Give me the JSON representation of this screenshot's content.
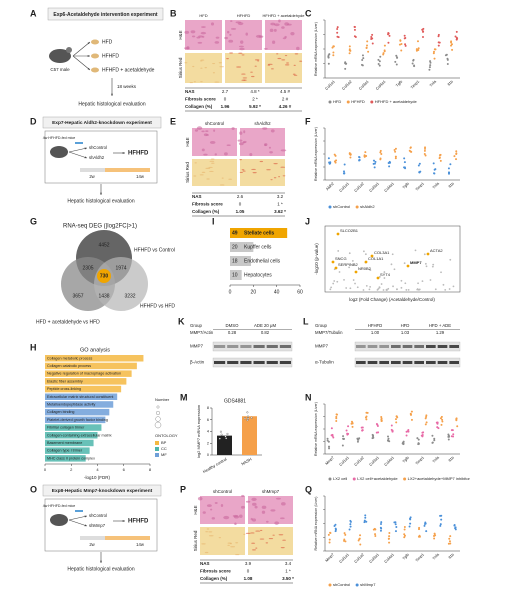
{
  "A": {
    "label": "A",
    "title": "Exp6-Acetaldehyde intervention experiment",
    "mouse": "C57 male",
    "groups": [
      "HFD",
      "HFHFD",
      "HFHFD + acetaldehyde"
    ],
    "duration": "18 weeks",
    "outcome": "Hepatic histological evaluation"
  },
  "B": {
    "label": "B",
    "columns": [
      "HFD",
      "HFHFD",
      "HFHFD + acetaldehyde"
    ],
    "rows": [
      "H&E",
      "Sirius Red"
    ],
    "table": [
      [
        "NAS",
        "2.7",
        "4.8 *",
        "4.5 #"
      ],
      [
        "Fibrosis score",
        "0",
        "2 *",
        "2 #"
      ],
      [
        "Collagen (%)",
        "1.96",
        "5.92 *",
        "4.26 #"
      ]
    ]
  },
  "C": {
    "label": "C",
    "ylabel": "Relative mRNA expression (Liver)",
    "categories": [
      "Col1a1",
      "Col1a2",
      "Col3a1",
      "Col4a1",
      "Tgfb",
      "Timp1",
      "Tnfa",
      "Il1b"
    ],
    "legend": [
      "HFD",
      "HFHFD",
      "HFHFD + acetaldehyde"
    ],
    "colors": [
      "#8c8c8c",
      "#f5a04a",
      "#e05a5a"
    ]
  },
  "D": {
    "label": "D",
    "title": "Exp7-Hepatic Aldh2-knockdown experiment",
    "mice": "4w HFHFD-fed mice",
    "arms": [
      "shControl",
      "shAldh2"
    ],
    "diet": "HFHFD",
    "times": [
      "2w",
      "14w"
    ],
    "outcome": "Hepatic histological evaluation"
  },
  "E": {
    "label": "E",
    "columns": [
      "shControl",
      "shAldh2"
    ],
    "rows": [
      "H&E",
      "Sirius Red"
    ],
    "table": [
      [
        "NAS",
        "2.6",
        "3.2"
      ],
      [
        "Fibrosis score",
        "0",
        "1 *"
      ],
      [
        "Collagen (%)",
        "1.05",
        "3.62 *"
      ]
    ]
  },
  "F": {
    "label": "F",
    "ylabel": "Relative mRNA expression (Liver)",
    "categories": [
      "Aldh2",
      "Col1a1",
      "Col1a2",
      "Col3a1",
      "Col4a1",
      "Tgfb",
      "Timp1",
      "Tnfa",
      "Il1b"
    ],
    "legend": [
      "shControl",
      "shAldh2"
    ],
    "colors": [
      "#4a90d9",
      "#f5a04a"
    ]
  },
  "G": {
    "label": "G",
    "title": "RNA-seq DEG (|log2FC|>1)",
    "sets": [
      "HFHFD vs Control",
      "HFHFD vs HFD",
      "HFD + acetaldehyde vs HFD"
    ],
    "counts": [
      "4452",
      "2305",
      "1974",
      "730",
      "3657",
      "1438",
      "3232"
    ]
  },
  "H": {
    "label": "H",
    "title": "GO analysis",
    "type": "bar",
    "terms": [
      "Collagen metabolic process",
      "Collagen catabolic process",
      "Negative regulation of macrophage activation",
      "Elastic fiber assembly",
      "Peptide cross-linking",
      "Extracellular matrix structural constituent",
      "Metalloendopeptidase activity",
      "Collagen binding",
      "Platelet-derived growth factor binding",
      "Fibrillar collagen trimer",
      "Collagen-containing extracellular matrix",
      "Basement membrane",
      "Collagen type I trimer",
      "MHC class II protein complex"
    ],
    "ontology": [
      "BP",
      "BP",
      "BP",
      "BP",
      "BP",
      "MF",
      "MF",
      "MF",
      "MF",
      "CC",
      "CC",
      "CC",
      "CC",
      "CC"
    ],
    "values": [
      7.5,
      7,
      6.6,
      6.2,
      5.8,
      5.5,
      5.2,
      4.9,
      4.6,
      4.3,
      4,
      3.7,
      3.4,
      3.1
    ],
    "xlim": [
      0,
      8
    ],
    "xticks": [
      0,
      2,
      4,
      6,
      8
    ],
    "xlabel": "-log10 (FDR)",
    "size_title": "Number",
    "ontology_title": "ONTOLOGY",
    "ontology_names": [
      "BP",
      "CC",
      "MF"
    ],
    "ontology_colors": [
      "#f4b942",
      "#4db6ac",
      "#6f9fd8"
    ]
  },
  "I": {
    "label": "I",
    "type": "bar",
    "categories": [
      "Stellate cells",
      "Kupffer cells",
      "Endothelial cells",
      "Hepatocytes"
    ],
    "values": [
      49,
      20,
      18,
      10
    ],
    "colors": [
      "#f0a500",
      "#c8c8c8",
      "#c8c8c8",
      "#c8c8c8"
    ],
    "xlim": [
      0,
      60
    ],
    "xticks": [
      0,
      20,
      40,
      60
    ]
  },
  "J": {
    "label": "J",
    "ylabel": "-log10 (p-value)",
    "xlabel": "log2 (Fold Change) (Acetaldehyde/Control)",
    "genes": [
      "SLCO2B1",
      "SNCG",
      "SERPINB2",
      "COL3A1",
      "COL1A1",
      "ACTA2",
      "MMP7",
      "NR0B2",
      "SYT4"
    ]
  },
  "K": {
    "label": "K",
    "table": [
      [
        "Group",
        "DMSO",
        "ADE 20 μM"
      ],
      [
        "MMP7/Actin",
        "0.28",
        "0.82"
      ]
    ],
    "blots": [
      "MMP7",
      "β-Actin"
    ]
  },
  "L": {
    "label": "L",
    "table": [
      [
        "Group",
        "HFHFD",
        "HFD",
        "HFD + ADE"
      ],
      [
        "MMP7/Tubulin",
        "1.00",
        "1.03",
        "1.29"
      ]
    ],
    "blots": [
      "MMP7",
      "α-Tubulin"
    ]
  },
  "M": {
    "label": "M",
    "type": "bar",
    "title": "GDS4881",
    "ylabel": "log2 MMP7 mRNA expression",
    "categories": [
      "Healthy control",
      "NASH"
    ],
    "values": [
      3.3,
      6.6
    ],
    "colors": [
      "#222222",
      "#f5a04a"
    ],
    "ylim": [
      0,
      8
    ],
    "yticks": [
      0,
      2,
      4,
      6,
      8
    ]
  },
  "N": {
    "label": "N",
    "ylabel": "Relative mRNA expression (Liver)",
    "categories": [
      "Mmp7",
      "Col1a1",
      "Col1a2",
      "Col3a1",
      "Col4a1",
      "Tgfb",
      "Timp1",
      "Tnfa",
      "Il1b"
    ],
    "legend": [
      "LX2 cell",
      "LX2 cell+acetaldehyde",
      "LX2+acetaldehyde+MMP7 inhibitor"
    ],
    "colors": [
      "#8c8c8c",
      "#e86aa6",
      "#f5a04a"
    ]
  },
  "O": {
    "label": "O",
    "title": "Exp8-Hepatic Mmp7-knockdown experiment",
    "mice": "4w HFHFD-fed mice",
    "arms": [
      "shControl",
      "shMmp7"
    ],
    "diet": "HFHFD",
    "times": [
      "2w",
      "14w"
    ],
    "outcome": "Hepatic histological evaluation"
  },
  "P": {
    "label": "P",
    "columns": [
      "shControl",
      "shMmp7"
    ],
    "rows": [
      "H&E",
      "Sirius Red"
    ],
    "table": [
      [
        "NAS",
        "3.9",
        "3.4"
      ],
      [
        "Fibrosis score",
        "0",
        "1 *"
      ],
      [
        "Collagen (%)",
        "1.08",
        "3.50 *"
      ]
    ]
  },
  "Q": {
    "label": "Q",
    "ylabel": "Relative mRNA expression (Liver)",
    "categories": [
      "Mmp7",
      "Col1a1",
      "Col1a2",
      "Col3a1",
      "Col4a1",
      "Tgfb",
      "Timp1",
      "Tnfa",
      "Il1b"
    ],
    "legend": [
      "shControl",
      "shMmp7"
    ],
    "colors": [
      "#f5a04a",
      "#4a90d9"
    ]
  }
}
